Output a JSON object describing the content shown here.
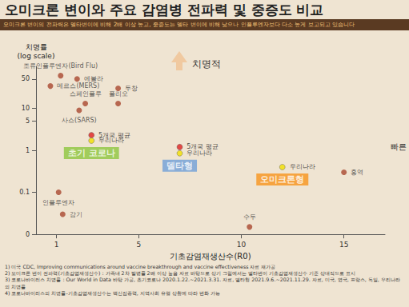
{
  "chart_data": {
    "type": "scatter",
    "title": "오미크론 변이와 주요 감염병 전파력 및 중증도 비교",
    "subtitle": "오미크론 변이의 전파력은 델타변이에 비해 2배 이상 높고, 중증도는 델타 변이에 비해 낮으나 인플루엔자보다 다소 높게 보고되고 있습니다",
    "x_label": "기초감염재생산수(R0)",
    "y_label": "치명률\n(log scale)",
    "log": "y",
    "grid": false,
    "xlim": [
      0,
      17
    ],
    "xticks": [
      1,
      5,
      10,
      15
    ],
    "ylim": [
      0.01,
      100
    ],
    "yticks": [
      {
        "value": 0.01,
        "label": "0"
      },
      0.1,
      1,
      5,
      10,
      50
    ],
    "data_labels": true,
    "color": "#a9472f",
    "points": [
      {
        "label": "조류인플루엔자(Bird Flu)",
        "x": 1.2,
        "y": 60
      },
      {
        "label": "메르스(MERS)",
        "x": 0.7,
        "y": 34
      },
      {
        "label": "에볼라",
        "x": 2,
        "y": 50
      },
      {
        "label": "두창",
        "x": 4,
        "y": 30
      },
      {
        "label": "스페인플루",
        "x": 2.4,
        "y": 13
      },
      {
        "label": "폴리오",
        "x": 4,
        "y": 13
      },
      {
        "label": "사스(SARS)",
        "x": 2.1,
        "y": 9
      },
      {
        "label": "인플루엔자",
        "x": 1.1,
        "y": 0.1
      },
      {
        "label": "감기",
        "x": 1.3,
        "y": 0.03
      },
      {
        "label": "수두",
        "x": 10.4,
        "y": 0.015
      },
      {
        "label": "홍역",
        "x": 15,
        "y": 0.3
      }
    ],
    "groups": [
      {
        "name": "초기 코로나",
        "color": "#8dc63f",
        "points": [
          {
            "label": "5개국 평균",
            "x": 2.7,
            "y": 2.3,
            "color": "#e02020"
          },
          {
            "label": "우리나라",
            "x": 2.7,
            "y": 1.7,
            "color": "#f2e000"
          }
        ]
      },
      {
        "name": "델타형",
        "color": "#6f9fd8",
        "points": [
          {
            "label": "5개국 평균",
            "x": 7,
            "y": 1.2,
            "color": "#e02020"
          },
          {
            "label": "우리나라",
            "x": 7,
            "y": 0.85,
            "color": "#f2e000"
          }
        ]
      },
      {
        "name": "오미크론형",
        "color": "#f7941d",
        "points": [
          {
            "label": "우리나라",
            "x": 12,
            "y": 0.4,
            "color": "#f2e000"
          }
        ]
      }
    ],
    "annotations": [
      "치명적",
      "빠른"
    ],
    "footnotes": [
      "1) 미국 CDC, Improving communications around vaccine breakthrough and vaccine effectiveness 자료 재가공",
      "2) 오미크론 변이 전파력(기초감염재생산수) : 가족내 2차 발병률 2배 이상 높음 자료 바탕으로 상기 그림에서는 델타변이 기초감염재생산수 기준 상대적으로 표시",
      "3) 코로나바이러스 치명률 : Our World in Data 바탕 가공, 초기코로나 2020.1.22.~2021.3.31. 자료, 델타형 2021.9.6.~2021.11.29. 자료, 미국, 영국, 프랑스, 독일, 우리나라의 치명률",
      "4) 코로나바이러스의 치명률-기초감염재생산수는 백신접종력, 지역사회 유행 상황에 따라 변화 가능"
    ]
  }
}
